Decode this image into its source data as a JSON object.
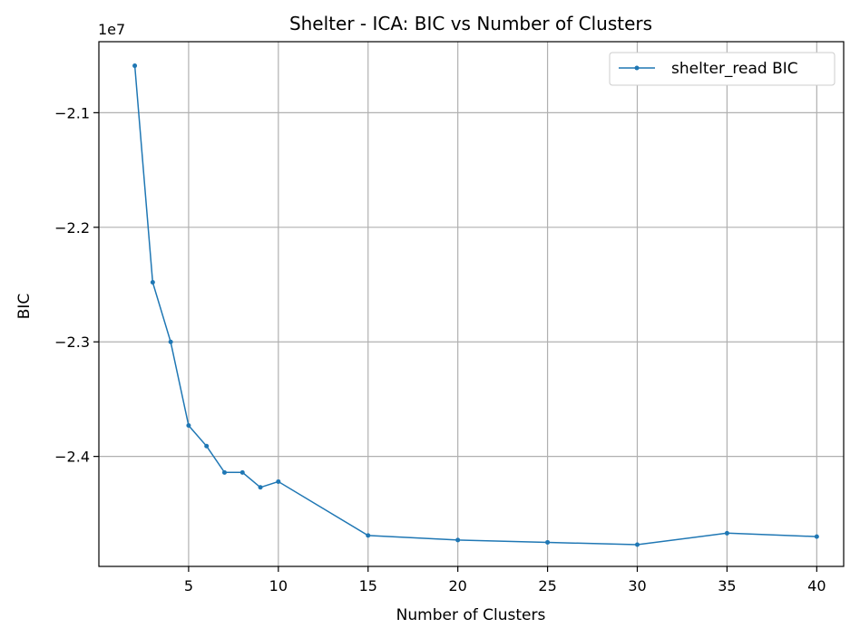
{
  "chart_data": {
    "type": "line",
    "title": "Shelter - ICA: BIC vs Number of Clusters",
    "xlabel": "Number of Clusters",
    "ylabel": "BIC",
    "y_offset_label": "1e7",
    "xlim": [
      0,
      41.5
    ],
    "ylim": [
      -24.96,
      -20.38
    ],
    "x_ticks": [
      5,
      10,
      15,
      20,
      25,
      30,
      35,
      40
    ],
    "x_tick_labels": [
      "5",
      "10",
      "15",
      "20",
      "25",
      "30",
      "35",
      "40"
    ],
    "y_ticks": [
      -21.0,
      -22.0,
      -23.0,
      -24.0
    ],
    "y_tick_labels": [
      "−2.1",
      "−2.2",
      "−2.3",
      "−2.4"
    ],
    "grid": true,
    "legend_position": "top-right",
    "series": [
      {
        "name": "shelter_read BIC",
        "color": "#1f77b4",
        "x": [
          2,
          3,
          4,
          5,
          6,
          7,
          8,
          9,
          10,
          15,
          20,
          25,
          30,
          35,
          40
        ],
        "y": [
          -20.59,
          -22.48,
          -23.0,
          -23.73,
          -23.91,
          -24.14,
          -24.14,
          -24.27,
          -24.22,
          -24.69,
          -24.73,
          -24.75,
          -24.77,
          -24.67,
          -24.7
        ]
      }
    ]
  }
}
